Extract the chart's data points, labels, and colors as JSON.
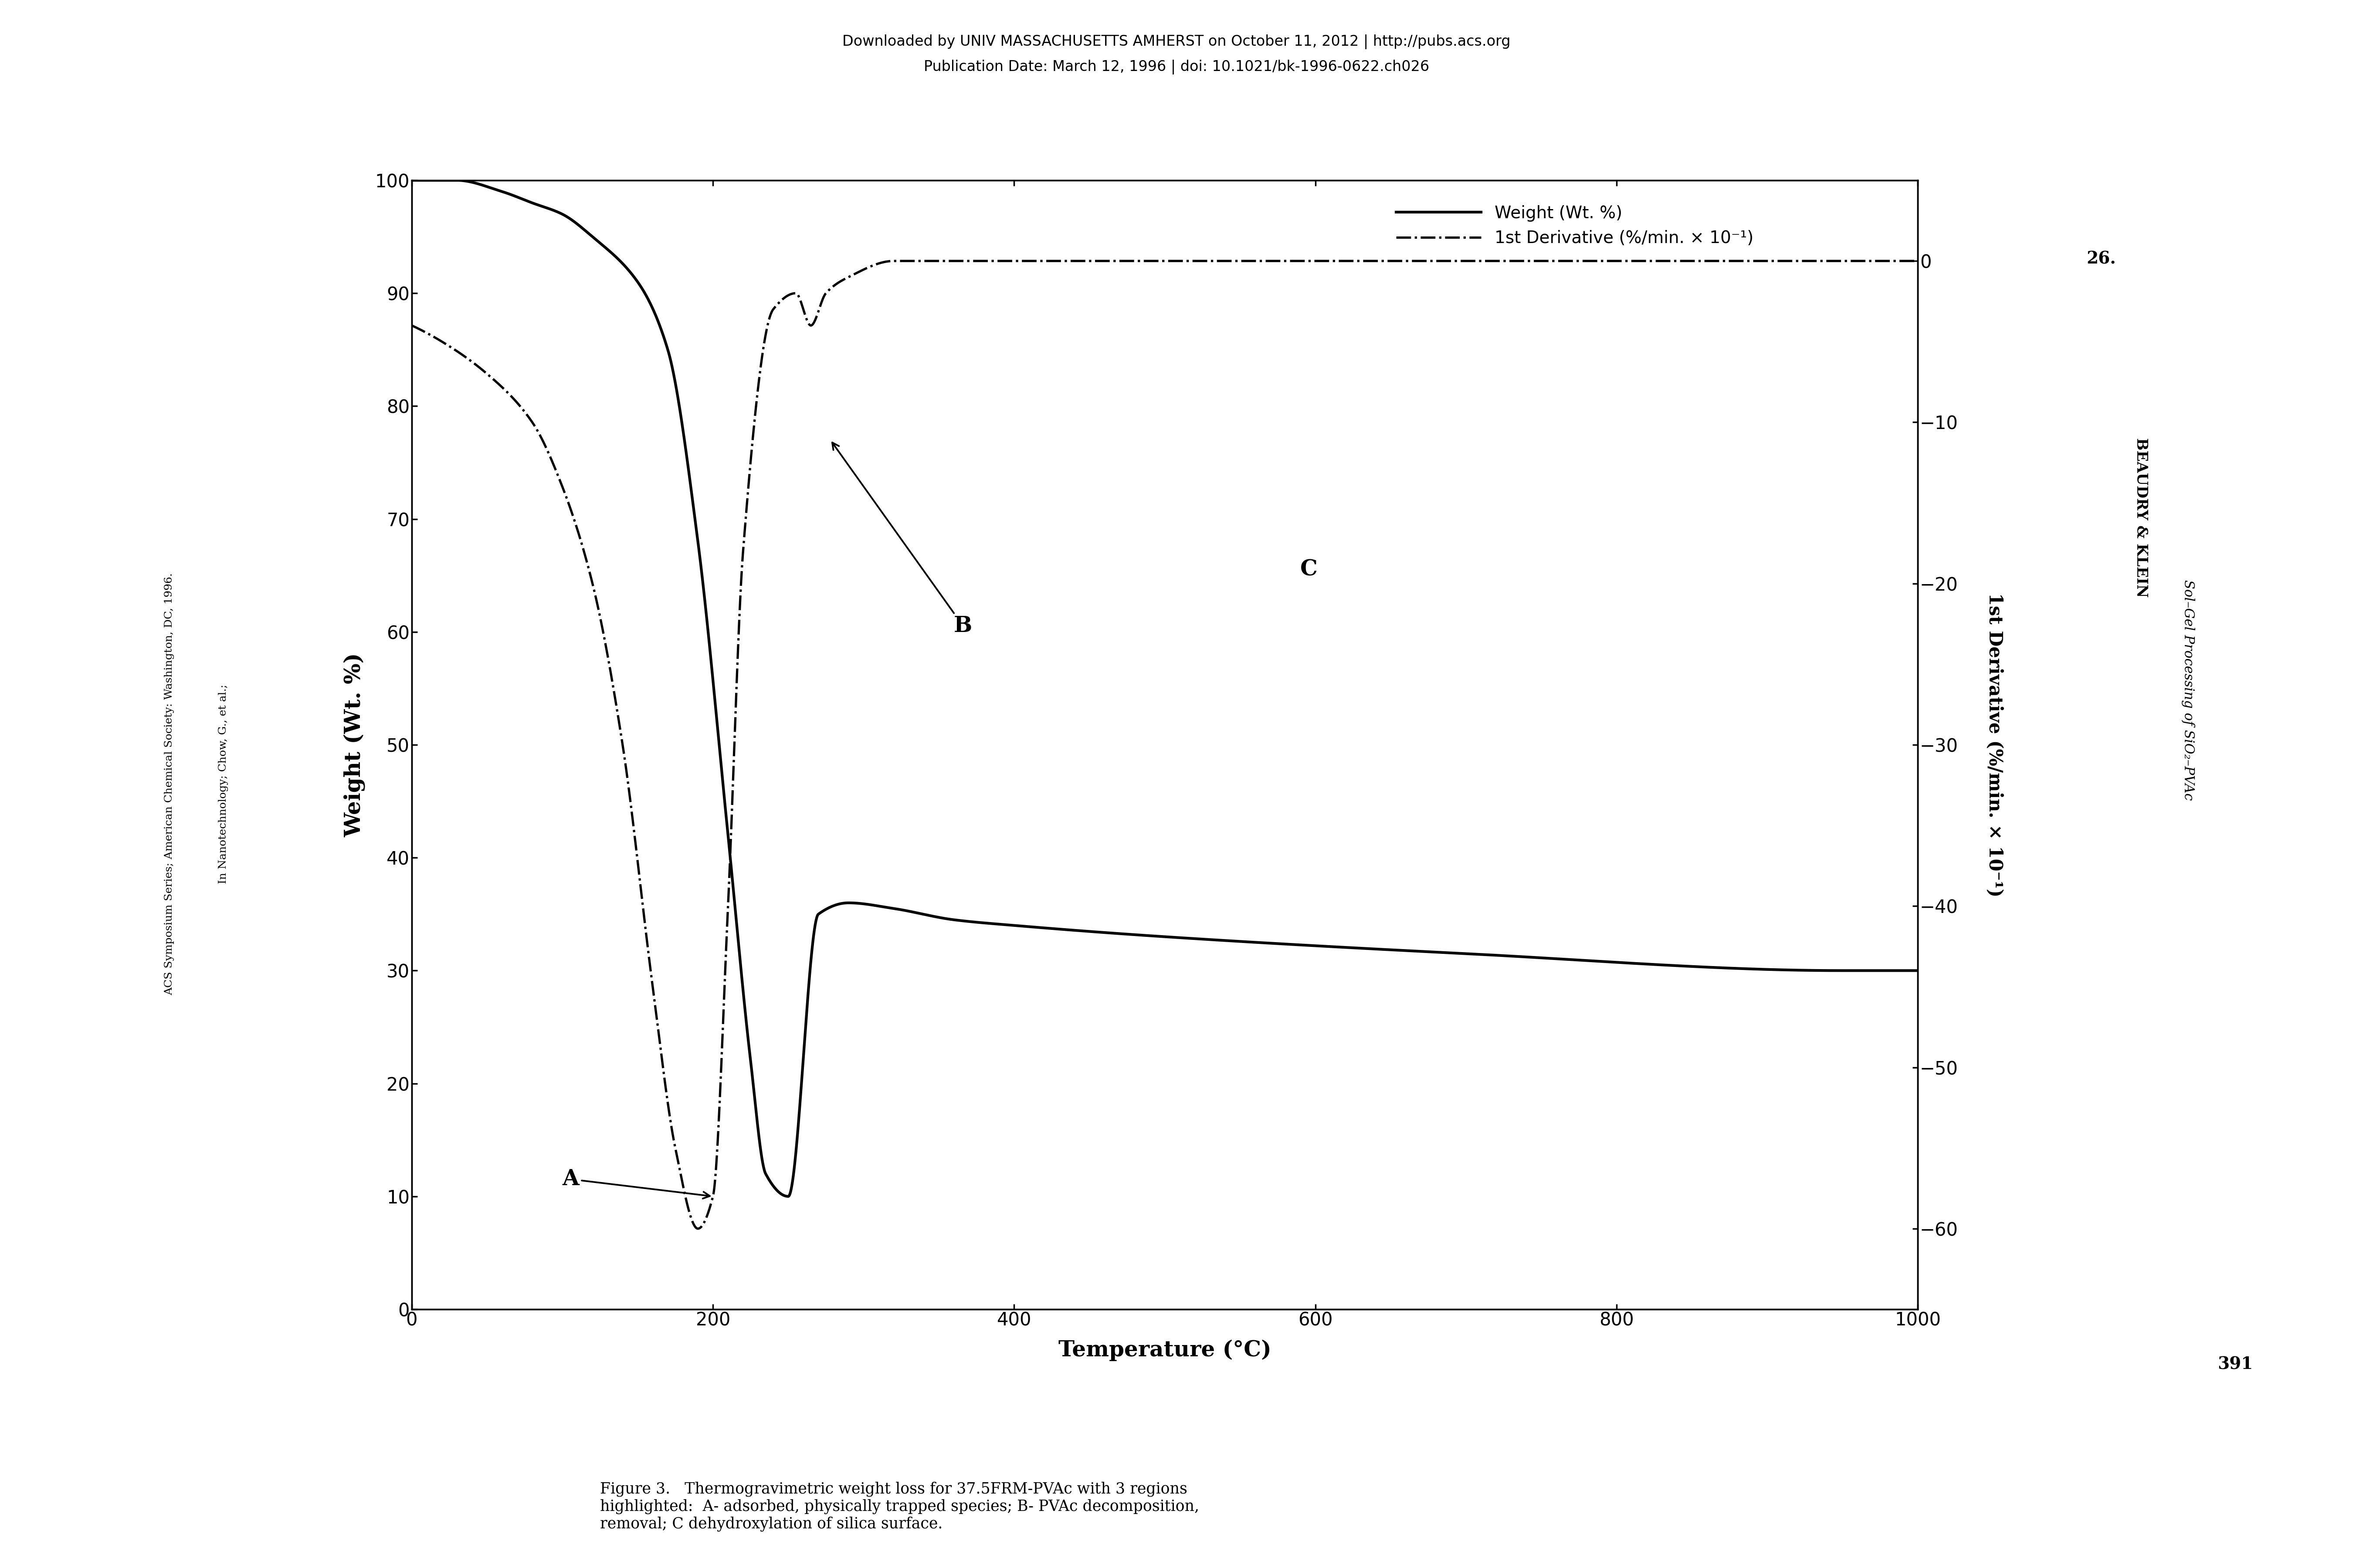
{
  "title_top1": "Downloaded by UNIV MASSACHUSETTS AMHERST on October 11, 2012 | http://pubs.acs.org",
  "title_top2": "Publication Date: March 12, 1996 | doi: 10.1021/bk-1996-0622.ch026",
  "xlabel": "Temperature (°C)",
  "ylabel_left": "Weight (Wt. %)",
  "ylabel_right": "1st Derivative (%/min. × 10⁻¹)",
  "legend_weight": "Weight (Wt. %)",
  "legend_deriv": "1st Derivative (%/min. × 10⁻¹)",
  "caption": "Figure 3.   Thermogravimetric weight loss for 37.5FRM-PVAc with 3 regions\nhighlighted:  A- adsorbed, physically trapped species; B- PVAc decomposition,\nremoval; C dehydroxylation of silica surface.",
  "xlim": [
    0,
    1000
  ],
  "ylim_left": [
    0,
    100
  ],
  "ylim_right": [
    -65,
    5
  ],
  "yticks_left": [
    0,
    10,
    20,
    30,
    40,
    50,
    60,
    70,
    80,
    90,
    100
  ],
  "yticks_right": [
    0,
    -10,
    -20,
    -30,
    -40,
    -50,
    -60
  ],
  "xticks": [
    0,
    200,
    400,
    600,
    800,
    1000
  ],
  "background_color": "#ffffff",
  "line_color": "#000000",
  "side_text_left1": "In Nanotechnology; Chow, G., et al.;",
  "side_text_left2": "ACS Symposium Series; American Chemical Society: Washington, DC, 1996.",
  "side_text_right1": "26.",
  "side_text_right2": "BEAUDRY & KLEIN",
  "side_text_right3": "Sol–Gel Processing of SiO₂–PVAc",
  "side_text_right4": "391",
  "weight_T": [
    0,
    30,
    60,
    80,
    100,
    120,
    150,
    170,
    190,
    210,
    225,
    235,
    250,
    270,
    290,
    320,
    360,
    400,
    500,
    700,
    950,
    1000
  ],
  "weight_W": [
    100,
    100,
    99,
    98,
    97,
    95,
    91,
    85,
    68,
    42,
    22,
    12,
    10,
    35,
    36,
    35.5,
    34.5,
    34,
    33,
    31.5,
    30,
    30
  ],
  "deriv_T": [
    0,
    20,
    50,
    80,
    100,
    120,
    140,
    160,
    175,
    190,
    200,
    210,
    220,
    240,
    255,
    265,
    275,
    290,
    320,
    400,
    950,
    1000
  ],
  "deriv_D": [
    -4,
    -5,
    -7,
    -10,
    -14,
    -20,
    -30,
    -45,
    -55,
    -60,
    -58,
    -40,
    -18,
    -3,
    -2,
    -4,
    -2,
    -1,
    0,
    0,
    0,
    0
  ]
}
